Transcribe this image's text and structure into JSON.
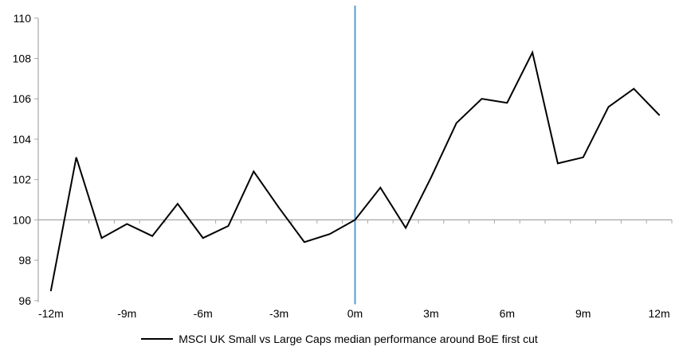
{
  "chart_data": {
    "type": "line",
    "title": "",
    "xlabel": "",
    "ylabel": "",
    "x": [
      -12,
      -11,
      -10,
      -9,
      -8,
      -7,
      -6,
      -5,
      -4,
      -3,
      -2,
      -1,
      0,
      1,
      2,
      3,
      4,
      5,
      6,
      7,
      8,
      9,
      10,
      11,
      12
    ],
    "series": [
      {
        "name": "MSCI UK Small vs Large Caps median performance around BoE first cut",
        "values": [
          96.5,
          103.1,
          99.1,
          99.8,
          99.2,
          100.8,
          99.1,
          99.7,
          102.4,
          100.6,
          98.9,
          99.3,
          100.0,
          101.6,
          99.6,
          102.1,
          104.8,
          106.0,
          105.8,
          108.3,
          102.8,
          103.1,
          105.6,
          106.5,
          105.2
        ],
        "color": "#000000"
      }
    ],
    "ylim": [
      96,
      110
    ],
    "y_tick_step": 2,
    "y_ticks": [
      96,
      98,
      100,
      102,
      104,
      106,
      108,
      110
    ],
    "x_tick_labels": [
      {
        "month": -12,
        "label": "-12m"
      },
      {
        "month": -9,
        "label": "-9m"
      },
      {
        "month": -6,
        "label": "-6m"
      },
      {
        "month": -3,
        "label": "-3m"
      },
      {
        "month": 0,
        "label": "0m"
      },
      {
        "month": 3,
        "label": "3m"
      },
      {
        "month": 6,
        "label": "6m"
      },
      {
        "month": 9,
        "label": "9m"
      },
      {
        "month": 12,
        "label": "12m"
      }
    ],
    "baseline_value": 100,
    "event_line_month": 0,
    "grid": false,
    "legend_position": "bottom",
    "colors": {
      "series": "#000000",
      "event_line": "#5B9BD5",
      "axis": "#A6A6A6",
      "tick_label": "#000000"
    }
  },
  "legend": {
    "label": "MSCI UK Small vs Large Caps median performance around BoE first cut"
  }
}
